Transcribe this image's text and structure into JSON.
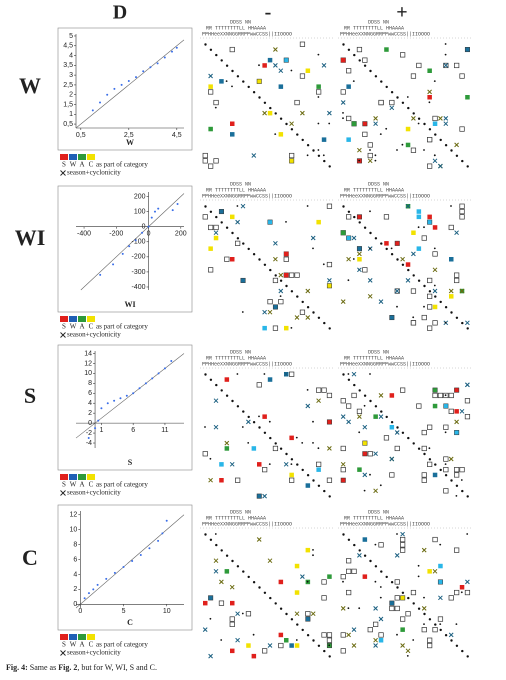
{
  "header": {
    "col_d": "D",
    "col_minus": "-",
    "col_plus": "+"
  },
  "matrix_header": {
    "line1": "DDSS          NN",
    "line2": "RR   TTTTTTTTLL        HHAAAA",
    "line3": "PPHHeeXXNNGGRRPPwwCCSS||IIOOOO"
  },
  "rows": [
    {
      "label": "W",
      "plot": {
        "type": "scatter",
        "xlabel": "W",
        "color": "#3a6ee8",
        "xlim": [
          0.3,
          4.8
        ],
        "ylim": [
          0.3,
          5.1
        ],
        "xticks": [
          {
            "value": 0.5,
            "label": "0,5"
          },
          {
            "value": 2.5,
            "label": "2,5"
          },
          {
            "value": 4.5,
            "label": "4,5"
          }
        ],
        "yticks": [
          {
            "value": 0.5,
            "label": "0,5"
          },
          1,
          {
            "value": 1.5,
            "label": "1,5"
          },
          2,
          {
            "value": 2.5,
            "label": "2,5"
          },
          3,
          {
            "value": 3.5,
            "label": "3,5"
          },
          4,
          {
            "value": 4.5,
            "label": "4,5"
          },
          5
        ],
        "x": [
          1,
          1.3,
          1.6,
          1.9,
          2.2,
          2.5,
          2.8,
          3.1,
          3.4,
          3.7,
          4.0,
          4.3,
          4.5
        ],
        "y": [
          1.2,
          1.6,
          2.0,
          2.3,
          2.5,
          2.7,
          2.9,
          3.2,
          3.4,
          3.6,
          3.9,
          4.2,
          4.4
        ]
      },
      "legend_letters": [
        "S",
        "W",
        "A",
        "C"
      ],
      "legend_text": "as part of category",
      "legend_cross": "season+cyclonicity"
    },
    {
      "label": "WI",
      "plot": {
        "type": "scatter",
        "xlabel": "WI",
        "color": "#3a6ee8",
        "xlim": [
          -450,
          220
        ],
        "ylim": [
          -420,
          230
        ],
        "xticks": [
          -400,
          -200,
          0,
          200
        ],
        "yticks": [
          -400,
          -300,
          -200,
          -100,
          0,
          100,
          200
        ],
        "x": [
          -300,
          -220,
          -160,
          -120,
          -80,
          -40,
          0,
          20,
          40,
          60,
          150,
          180
        ],
        "y": [
          -320,
          -250,
          -180,
          -130,
          -90,
          -40,
          0,
          60,
          100,
          120,
          110,
          150
        ]
      },
      "legend_letters": [
        "S",
        "W",
        "A",
        "C"
      ],
      "legend_text": "as part of category",
      "legend_cross": "season+cyclonicity"
    },
    {
      "label": "S",
      "plot": {
        "type": "scatter",
        "xlabel": "S",
        "color": "#3a6ee8",
        "xlim": [
          -3,
          14
        ],
        "ylim": [
          -5,
          14.5
        ],
        "xticks": [
          1,
          6,
          11
        ],
        "yticks": [
          -4,
          -2,
          0,
          2,
          4,
          6,
          8,
          10,
          12,
          14
        ],
        "x": [
          -1,
          0,
          0.5,
          1,
          2,
          3,
          4,
          5,
          6,
          7,
          8,
          9,
          10,
          11,
          12
        ],
        "y": [
          -3,
          -1,
          0.5,
          3,
          4,
          4.5,
          5,
          5.5,
          6,
          7,
          8,
          9,
          10,
          11,
          12.5
        ]
      },
      "legend_letters": [
        "S",
        "W",
        "A",
        "C"
      ],
      "legend_text": "as part of category",
      "legend_cross": "season+cyclonicity"
    },
    {
      "label": "C",
      "plot": {
        "type": "scatter",
        "xlabel": "C",
        "color": "#3a6ee8",
        "xlim": [
          -0.5,
          12
        ],
        "ylim": [
          -0.5,
          12.5
        ],
        "xticks": [
          0,
          5,
          10
        ],
        "yticks": [
          0,
          2,
          4,
          6,
          8,
          10,
          12
        ],
        "x": [
          0.5,
          1,
          1.5,
          2,
          3,
          4,
          5,
          6,
          7,
          8,
          9,
          9.5,
          10
        ],
        "y": [
          0.8,
          1.5,
          2,
          2.6,
          3.4,
          4.2,
          5,
          5.8,
          6.6,
          7.5,
          8.5,
          9.5,
          11.2
        ]
      },
      "legend_letters": [
        "S",
        "W",
        "A",
        "C"
      ],
      "legend_text": "as part of category",
      "legend_cross": "season+cyclonicity"
    }
  ],
  "caption": {
    "fig": "Fig. 4:",
    "text": "Same as",
    "ref": "Fig. 2",
    "rest": ", but for W, WI, S and C."
  }
}
